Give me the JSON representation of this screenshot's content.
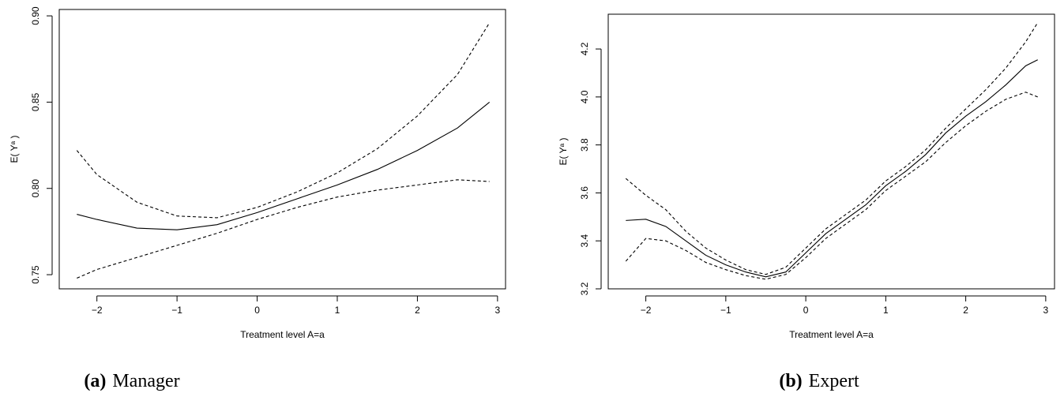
{
  "chart_data": [
    {
      "type": "line",
      "caption_label": "(a)",
      "caption": "Manager",
      "xlabel": "Treatment level A=a",
      "ylabel": "E( Yᵃ )",
      "x": [
        -2.25,
        -2,
        -1.5,
        -1,
        -0.5,
        0,
        0.5,
        1,
        1.5,
        2,
        2.5,
        2.9
      ],
      "series": [
        {
          "color": "#000000",
          "dashed": false,
          "values": [
            0.785,
            0.782,
            0.777,
            0.776,
            0.779,
            0.786,
            0.794,
            0.802,
            0.811,
            0.822,
            0.835,
            0.85
          ]
        },
        {
          "color": "#000000",
          "dashed": true,
          "values": [
            0.822,
            0.808,
            0.792,
            0.784,
            0.783,
            0.789,
            0.798,
            0.809,
            0.823,
            0.842,
            0.866,
            0.896
          ]
        },
        {
          "color": "#000000",
          "dashed": true,
          "values": [
            0.748,
            0.753,
            0.76,
            0.767,
            0.774,
            0.782,
            0.789,
            0.795,
            0.799,
            0.802,
            0.805,
            0.804
          ]
        }
      ],
      "xlim": [
        -2.47,
        3.1
      ],
      "ylim": [
        0.7418,
        0.9037
      ],
      "xticks": [
        {
          "value": -2,
          "label": "−2"
        },
        {
          "value": -1,
          "label": "−1"
        },
        0,
        1,
        2,
        3
      ],
      "yticks": [
        0.75,
        {
          "value": 0.8,
          "label": "0.80"
        },
        0.85,
        {
          "value": 0.9,
          "label": "0.90"
        }
      ]
    },
    {
      "type": "line",
      "caption_label": "(b)",
      "caption": "Expert",
      "xlabel": "Treatment level A=a",
      "ylabel": "E( Yᵃ )",
      "x": [
        -2.25,
        -2,
        -1.75,
        -1.5,
        -1.25,
        -1,
        -0.75,
        -0.5,
        -0.25,
        0,
        0.25,
        0.5,
        0.75,
        1,
        1.25,
        1.5,
        1.75,
        2,
        2.25,
        2.5,
        2.75,
        2.9
      ],
      "series": [
        {
          "color": "#000000",
          "dashed": false,
          "values": [
            3.485,
            3.49,
            3.46,
            3.4,
            3.34,
            3.3,
            3.27,
            3.25,
            3.27,
            3.35,
            3.43,
            3.49,
            3.55,
            3.63,
            3.69,
            3.76,
            3.85,
            3.92,
            3.98,
            4.05,
            4.13,
            4.155
          ]
        },
        {
          "color": "#000000",
          "dashed": true,
          "values": [
            3.66,
            3.59,
            3.53,
            3.44,
            3.37,
            3.32,
            3.28,
            3.26,
            3.29,
            3.37,
            3.45,
            3.51,
            3.57,
            3.65,
            3.71,
            3.78,
            3.87,
            3.95,
            4.03,
            4.12,
            4.23,
            4.31
          ]
        },
        {
          "color": "#000000",
          "dashed": true,
          "values": [
            3.315,
            3.41,
            3.4,
            3.36,
            3.31,
            3.28,
            3.255,
            3.24,
            3.26,
            3.33,
            3.41,
            3.47,
            3.53,
            3.61,
            3.67,
            3.73,
            3.81,
            3.88,
            3.94,
            3.99,
            4.02,
            4.0
          ]
        }
      ],
      "xlim": [
        -2.47,
        3.11
      ],
      "ylim": [
        3.2,
        4.345
      ],
      "xticks": [
        {
          "value": -2,
          "label": "−2"
        },
        {
          "value": -1,
          "label": "−1"
        },
        0,
        1,
        2,
        3
      ],
      "yticks": [
        3.2,
        3.4,
        3.6,
        3.8,
        {
          "value": 4.0,
          "label": "4.0"
        },
        4.2
      ]
    }
  ]
}
